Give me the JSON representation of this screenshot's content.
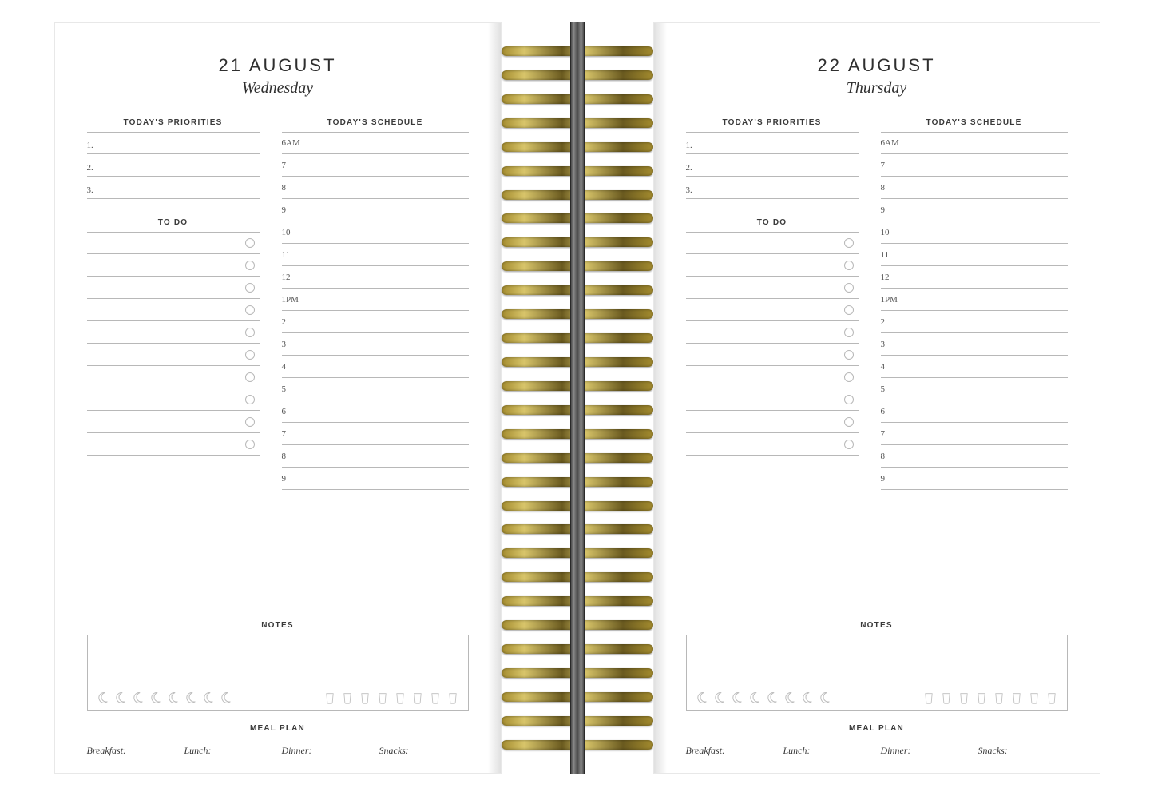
{
  "colors": {
    "ink": "#3a3a3a",
    "rule": "#b8b8b8",
    "paper": "#ffffff",
    "ring_dark": "#6a5a1f",
    "ring_mid": "#a38b2e",
    "ring_light": "#d8c56a"
  },
  "ring_count": 30,
  "schedule_hours": [
    "6AM",
    "7",
    "8",
    "9",
    "10",
    "11",
    "12",
    "1PM",
    "2",
    "3",
    "4",
    "5",
    "6",
    "7",
    "8",
    "9"
  ],
  "priority_slots": [
    "1.",
    "2.",
    "3."
  ],
  "todo_slot_count": 10,
  "moon_icon_count": 8,
  "cup_icon_count": 8,
  "section_labels": {
    "priorities": "TODAY'S PRIORITIES",
    "schedule": "TODAY'S SCHEDULE",
    "todo": "TO DO",
    "notes": "NOTES",
    "meal_plan": "MEAL PLAN"
  },
  "meals": {
    "breakfast": "Breakfast:",
    "lunch": "Lunch:",
    "dinner": "Dinner:",
    "snacks": "Snacks:"
  },
  "pages": {
    "left": {
      "date": "21 AUGUST",
      "day": "Wednesday"
    },
    "right": {
      "date": "22 AUGUST",
      "day": "Thursday"
    }
  }
}
